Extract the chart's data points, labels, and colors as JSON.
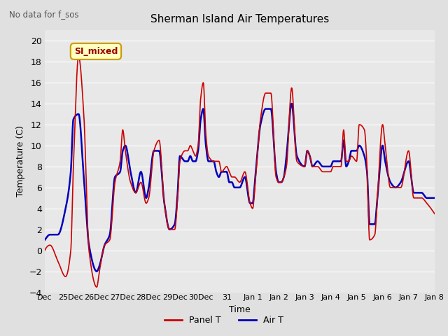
{
  "title": "Sherman Island Air Temperatures",
  "subtitle": "No data for f_sos",
  "xlabel": "Time",
  "ylabel": "Temperature (C)",
  "ylim": [
    -4,
    21
  ],
  "yticks": [
    -4,
    -2,
    0,
    2,
    4,
    6,
    8,
    10,
    12,
    14,
    16,
    18,
    20
  ],
  "x_tick_positions": [
    0,
    1,
    2,
    3,
    4,
    5,
    6,
    7,
    8,
    9,
    10,
    11,
    12,
    13,
    14,
    15
  ],
  "x_tick_labels": [
    "Dec",
    "25Dec",
    "26Dec",
    "27Dec",
    "28Dec",
    "29Dec",
    "30Dec",
    "31",
    "Jan 1",
    "Jan 2",
    "Jan 3",
    "Jan 4",
    "Jan 5",
    "Jan 6",
    "Jan 7",
    "Jan 8"
  ],
  "panel_color": "#cc0000",
  "air_color": "#0000bb",
  "bg_color": "#e0e0e0",
  "plot_bg_color": "#e8e8e8",
  "legend_box_facecolor": "#ffffc0",
  "legend_box_edgecolor": "#cc9900",
  "annotation_label": "SI_mixed",
  "annotation_color": "#990000",
  "grid_color": "#ffffff",
  "panel_t_keypoints_x": [
    0,
    0.2,
    0.5,
    0.8,
    1.0,
    1.1,
    1.3,
    1.5,
    1.7,
    2.0,
    2.1,
    2.3,
    2.5,
    2.7,
    2.9,
    3.0,
    3.1,
    3.3,
    3.5,
    3.7,
    3.9,
    4.0,
    4.2,
    4.4,
    4.6,
    4.8,
    5.0,
    5.1,
    5.2,
    5.4,
    5.5,
    5.6,
    5.7,
    5.8,
    5.9,
    6.0,
    6.1,
    6.2,
    6.3,
    6.5,
    6.6,
    6.7,
    6.8,
    7.0,
    7.1,
    7.2,
    7.3,
    7.5,
    7.7,
    7.9,
    8.0,
    8.1,
    8.3,
    8.5,
    8.7,
    8.9,
    9.0,
    9.1,
    9.2,
    9.3,
    9.5,
    9.7,
    10.0,
    10.1,
    10.2,
    10.3,
    10.5,
    10.7,
    11.0,
    11.1,
    11.2,
    11.4,
    11.5,
    11.6,
    11.7,
    11.8,
    12.0,
    12.1,
    12.3,
    12.4,
    12.5,
    12.7,
    12.8,
    13.0,
    13.1,
    13.3,
    13.5,
    13.7,
    14.0,
    14.2,
    14.5,
    14.7,
    15.0
  ],
  "panel_t_keypoints_y": [
    0,
    0.5,
    -1.0,
    -2.5,
    0.0,
    8.0,
    18.5,
    13.0,
    0.0,
    -3.5,
    -2.0,
    0.5,
    1.0,
    6.5,
    8.5,
    11.5,
    9.5,
    6.5,
    5.5,
    6.5,
    4.5,
    5.0,
    9.5,
    10.5,
    4.5,
    2.0,
    2.0,
    4.5,
    8.5,
    9.5,
    9.5,
    10.0,
    9.5,
    9.0,
    10.0,
    14.5,
    16.0,
    11.0,
    9.0,
    8.5,
    8.5,
    8.5,
    7.5,
    8.0,
    7.5,
    7.0,
    7.0,
    6.5,
    7.5,
    4.5,
    4.0,
    6.5,
    12.5,
    15.0,
    15.0,
    7.0,
    6.5,
    6.5,
    7.0,
    8.0,
    15.5,
    8.5,
    8.0,
    9.5,
    9.0,
    8.0,
    8.0,
    7.5,
    7.5,
    8.0,
    8.0,
    8.0,
    11.5,
    8.5,
    8.5,
    9.0,
    8.5,
    12.0,
    11.5,
    8.0,
    1.0,
    1.5,
    5.0,
    12.0,
    10.0,
    6.0,
    6.0,
    6.0,
    9.5,
    5.0,
    5.0,
    4.5,
    3.5
  ],
  "air_t_keypoints_x": [
    0,
    0.2,
    0.5,
    0.8,
    1.0,
    1.1,
    1.3,
    1.5,
    1.7,
    2.0,
    2.1,
    2.3,
    2.5,
    2.7,
    2.9,
    3.0,
    3.1,
    3.3,
    3.5,
    3.7,
    3.9,
    4.0,
    4.2,
    4.4,
    4.6,
    4.8,
    5.0,
    5.1,
    5.2,
    5.4,
    5.5,
    5.6,
    5.7,
    5.8,
    5.9,
    6.0,
    6.1,
    6.2,
    6.3,
    6.5,
    6.6,
    6.7,
    6.8,
    7.0,
    7.1,
    7.2,
    7.3,
    7.5,
    7.7,
    7.9,
    8.0,
    8.1,
    8.3,
    8.5,
    8.7,
    8.9,
    9.0,
    9.1,
    9.2,
    9.3,
    9.5,
    9.7,
    10.0,
    10.1,
    10.2,
    10.3,
    10.5,
    10.7,
    11.0,
    11.1,
    11.2,
    11.4,
    11.5,
    11.6,
    11.7,
    11.8,
    12.0,
    12.1,
    12.3,
    12.4,
    12.5,
    12.7,
    12.8,
    13.0,
    13.1,
    13.3,
    13.5,
    13.7,
    14.0,
    14.2,
    14.5,
    14.7,
    15.0
  ],
  "air_t_keypoints_y": [
    1.0,
    1.5,
    1.5,
    4.0,
    7.5,
    12.5,
    13.0,
    7.0,
    0.5,
    -2.0,
    -1.5,
    0.5,
    1.5,
    7.0,
    7.5,
    9.5,
    10.0,
    7.5,
    5.5,
    7.5,
    5.0,
    6.0,
    9.5,
    9.5,
    4.5,
    2.0,
    2.5,
    5.0,
    9.0,
    8.5,
    8.5,
    9.0,
    8.5,
    8.5,
    9.5,
    12.5,
    13.5,
    10.0,
    8.5,
    8.5,
    7.5,
    7.0,
    7.5,
    7.5,
    6.5,
    6.5,
    6.0,
    6.0,
    7.0,
    4.5,
    4.5,
    7.0,
    12.0,
    13.5,
    13.5,
    7.5,
    6.5,
    6.5,
    7.0,
    9.0,
    14.0,
    9.0,
    8.0,
    9.5,
    9.0,
    8.0,
    8.5,
    8.0,
    8.0,
    8.5,
    8.5,
    8.5,
    10.5,
    8.0,
    8.5,
    9.5,
    9.5,
    10.0,
    9.0,
    7.5,
    2.5,
    2.5,
    5.0,
    10.0,
    8.5,
    6.5,
    6.0,
    6.5,
    8.5,
    5.5,
    5.5,
    5.0,
    5.0
  ]
}
